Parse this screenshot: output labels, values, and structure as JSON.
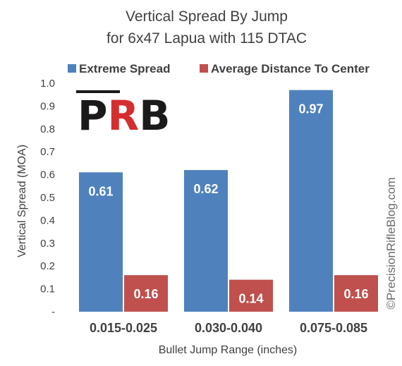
{
  "chart_data": {
    "type": "bar",
    "title": "Vertical Spread By Jump",
    "subtitle": "for 6x47 Lapua with 115 DTAC",
    "xlabel": "Bullet Jump Range (inches)",
    "ylabel": "Vertical Spread (MOA)",
    "categories": [
      "0.015-0.025",
      "0.030-0.040",
      "0.075-0.085"
    ],
    "series": [
      {
        "name": "Extreme Spread",
        "color": "#4f81bd",
        "values": [
          0.61,
          0.62,
          0.97
        ],
        "labels": [
          "0.61",
          "0.62",
          "0.97"
        ]
      },
      {
        "name": "Average Distance To Center",
        "color": "#c0504d",
        "values": [
          0.16,
          0.14,
          0.16
        ],
        "labels": [
          "0.16",
          "0.14",
          "0.16"
        ]
      }
    ],
    "ylim": [
      0,
      1.0
    ],
    "yticks": [
      "-",
      "0.1",
      "0.2",
      "0.3",
      "0.4",
      "0.5",
      "0.6",
      "0.7",
      "0.8",
      "0.9",
      "1.0"
    ],
    "grid": false,
    "legend_position": "top"
  },
  "watermark": "©PrecisionRifleBlog.com",
  "logo_text": "PRB"
}
